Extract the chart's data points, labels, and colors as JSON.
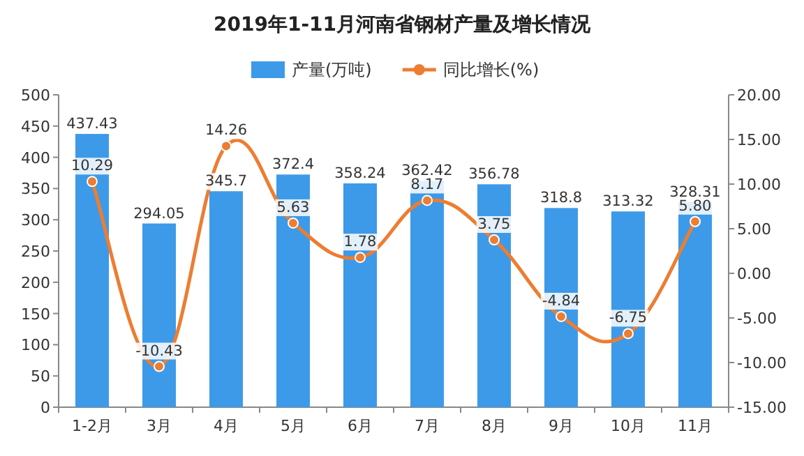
{
  "chart_data": {
    "type": "bar",
    "title": "2019年1-11月河南省钢材产量及增长情况",
    "categories": [
      "1-2月",
      "3月",
      "4月",
      "5月",
      "6月",
      "7月",
      "8月",
      "9月",
      "10月",
      "11月"
    ],
    "series": [
      {
        "name": "产量(万吨)",
        "color": "#3d9ae8",
        "values": [
          437.43,
          294.05,
          345.7,
          372.4,
          358.24,
          362.42,
          356.78,
          318.8,
          313.32,
          328.31
        ],
        "value_labels": [
          "437.43",
          "294.05",
          "345.7",
          "372.4",
          "358.24",
          "362.42",
          "356.78",
          "318.8",
          "313.32",
          "328.31"
        ]
      },
      {
        "name": "同比增长(%)",
        "type": "line",
        "axis": "y2",
        "color": "#ed7d31",
        "marker": "circle",
        "values": [
          10.29,
          -10.43,
          14.26,
          5.63,
          1.78,
          8.17,
          3.75,
          -4.84,
          -6.75,
          5.8
        ],
        "value_labels": [
          "10.29",
          "-10.43",
          "14.26",
          "5.63",
          "1.78",
          "8.17",
          "3.75",
          "-4.84",
          "-6.75",
          "5.80"
        ]
      }
    ],
    "ylim": [
      0,
      500
    ],
    "yticks": [
      0,
      50,
      100,
      150,
      200,
      250,
      300,
      350,
      400,
      450,
      500
    ],
    "y2lim": [
      -15,
      20
    ],
    "y2ticks": [
      {
        "value": -15,
        "label": "-15.00"
      },
      {
        "value": -10,
        "label": "-10.00"
      },
      {
        "value": -5,
        "label": "-5.00"
      },
      {
        "value": 0,
        "label": "0.00"
      },
      {
        "value": 5,
        "label": "5.00"
      },
      {
        "value": 10,
        "label": "10.00"
      },
      {
        "value": 15,
        "label": "15.00"
      },
      {
        "value": 20,
        "label": "20.00"
      }
    ],
    "legend": "top",
    "grid": false
  }
}
